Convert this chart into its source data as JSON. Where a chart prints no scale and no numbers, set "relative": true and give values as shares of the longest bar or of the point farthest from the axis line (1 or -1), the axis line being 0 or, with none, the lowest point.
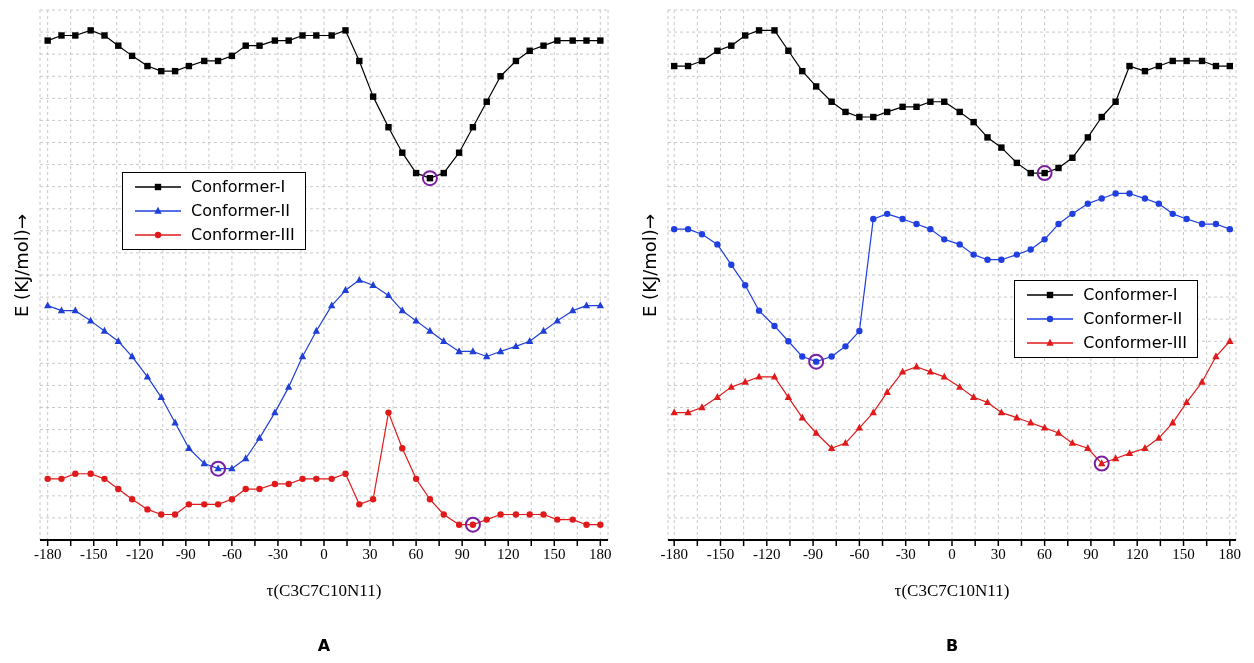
{
  "chart_data": [
    {
      "type": "line",
      "xlabel": "τ(C3C7C10N11)",
      "ylabel": "E (KJ/mol)→",
      "relative": true,
      "grid": true,
      "legend": "left",
      "annotations": [
        "A"
      ],
      "x": [
        -180,
        -171,
        -162,
        -152,
        -143,
        -134,
        -125,
        -115,
        -106,
        -97,
        -88,
        -78,
        -69,
        -60,
        -51,
        -42,
        -32,
        -23,
        -14,
        -5,
        5,
        14,
        23,
        32,
        42,
        51,
        60,
        69,
        78,
        88,
        97,
        106,
        115,
        125,
        134,
        143,
        152,
        162,
        171,
        180
      ],
      "xlim": [
        -185,
        185
      ],
      "xticks": [
        -180,
        {
          "value": -165,
          "label": null
        },
        -150,
        {
          "value": -135,
          "label": null
        },
        -120,
        {
          "value": -105,
          "label": null
        },
        -90,
        {
          "value": -75,
          "label": null
        },
        -60,
        {
          "value": -45,
          "label": null
        },
        -30,
        {
          "value": -15,
          "label": null
        },
        0,
        {
          "value": 15,
          "label": null
        },
        30,
        {
          "value": 45,
          "label": null
        },
        60,
        {
          "value": 75,
          "label": null
        },
        90,
        {
          "value": 105,
          "label": null
        },
        120,
        {
          "value": 135,
          "label": null
        },
        150,
        {
          "value": 165,
          "label": null
        },
        180
      ],
      "series": [
        {
          "name": "Conformer-I",
          "color": "#000000",
          "marker": "square",
          "values": [
            0.98,
            0.99,
            0.99,
            1.0,
            0.99,
            0.97,
            0.95,
            0.93,
            0.92,
            0.92,
            0.93,
            0.94,
            0.94,
            0.95,
            0.97,
            0.97,
            0.98,
            0.98,
            0.99,
            0.99,
            0.99,
            1.0,
            0.94,
            0.87,
            0.81,
            0.76,
            0.72,
            0.71,
            0.72,
            0.76,
            0.81,
            0.86,
            0.91,
            0.94,
            0.96,
            0.97,
            0.98,
            0.98,
            0.98,
            0.98
          ]
        },
        {
          "name": "Conformer-II",
          "color": "#1f3fd6",
          "marker": "triangle",
          "values": [
            0.46,
            0.45,
            0.45,
            0.43,
            0.41,
            0.39,
            0.36,
            0.32,
            0.28,
            0.23,
            0.18,
            0.15,
            0.14,
            0.14,
            0.16,
            0.2,
            0.25,
            0.3,
            0.36,
            0.41,
            0.46,
            0.49,
            0.51,
            0.5,
            0.48,
            0.45,
            0.43,
            0.41,
            0.39,
            0.37,
            0.37,
            0.36,
            0.37,
            0.38,
            0.39,
            0.41,
            0.43,
            0.45,
            0.46,
            0.46
          ]
        },
        {
          "name": "Conformer-III",
          "color": "#e01a1a",
          "marker": "circle",
          "values": [
            0.12,
            0.12,
            0.13,
            0.13,
            0.12,
            0.1,
            0.08,
            0.06,
            0.05,
            0.05,
            0.07,
            0.07,
            0.07,
            0.08,
            0.1,
            0.1,
            0.11,
            0.11,
            0.12,
            0.12,
            0.12,
            0.13,
            0.07,
            0.08,
            0.25,
            0.18,
            0.12,
            0.08,
            0.05,
            0.03,
            0.03,
            0.04,
            0.05,
            0.05,
            0.05,
            0.05,
            0.04,
            0.04,
            0.03,
            0.03
          ]
        },
        {
          "type": "scatter",
          "color": "#7a1fa2",
          "marker": "circle",
          "x": [
            69,
            -69,
            97
          ],
          "values": [
            0.71,
            0.14,
            0.03
          ]
        }
      ]
    },
    {
      "type": "line",
      "xlabel": "τ(C3C7C10N11)",
      "ylabel": "E (KJ/mol)→",
      "relative": true,
      "grid": true,
      "legend": "right",
      "annotations": [
        "B"
      ],
      "x": [
        -180,
        -171,
        -162,
        -152,
        -143,
        -134,
        -125,
        -115,
        -106,
        -97,
        -88,
        -78,
        -69,
        -60,
        -51,
        -42,
        -32,
        -23,
        -14,
        -5,
        5,
        14,
        23,
        32,
        42,
        51,
        60,
        69,
        78,
        88,
        97,
        106,
        115,
        125,
        134,
        143,
        152,
        162,
        171,
        180
      ],
      "xlim": [
        -184,
        184
      ],
      "xticks": [
        -180,
        {
          "value": -165,
          "label": null
        },
        -150,
        {
          "value": -135,
          "label": null
        },
        -120,
        {
          "value": -105,
          "label": null
        },
        -90,
        {
          "value": -75,
          "label": null
        },
        -60,
        {
          "value": -45,
          "label": null
        },
        -30,
        {
          "value": -15,
          "label": null
        },
        0,
        {
          "value": 15,
          "label": null
        },
        30,
        {
          "value": 45,
          "label": null
        },
        60,
        {
          "value": 75,
          "label": null
        },
        90,
        {
          "value": 105,
          "label": null
        },
        120,
        {
          "value": 135,
          "label": null
        },
        150,
        {
          "value": 165,
          "label": null
        },
        180
      ],
      "series": [
        {
          "name": "Conformer-I",
          "color": "#000000",
          "marker": "square",
          "values": [
            0.93,
            0.93,
            0.94,
            0.96,
            0.97,
            0.99,
            1.0,
            1.0,
            0.96,
            0.92,
            0.89,
            0.86,
            0.84,
            0.83,
            0.83,
            0.84,
            0.85,
            0.85,
            0.86,
            0.86,
            0.84,
            0.82,
            0.79,
            0.77,
            0.74,
            0.72,
            0.72,
            0.73,
            0.75,
            0.79,
            0.83,
            0.86,
            0.93,
            0.92,
            0.93,
            0.94,
            0.94,
            0.94,
            0.93,
            0.93
          ]
        },
        {
          "name": "Conformer-II",
          "color": "#1f3fe0",
          "marker": "circle",
          "values": [
            0.61,
            0.61,
            0.6,
            0.58,
            0.54,
            0.5,
            0.45,
            0.42,
            0.39,
            0.36,
            0.35,
            0.36,
            0.38,
            0.41,
            0.63,
            0.64,
            0.63,
            0.62,
            0.61,
            0.59,
            0.58,
            0.56,
            0.55,
            0.55,
            0.56,
            0.57,
            0.59,
            0.62,
            0.64,
            0.66,
            0.67,
            0.68,
            0.68,
            0.67,
            0.66,
            0.64,
            0.63,
            0.62,
            0.62,
            0.61
          ]
        },
        {
          "name": "Conformer-III",
          "color": "#e01a1a",
          "marker": "triangle",
          "values": [
            0.25,
            0.25,
            0.26,
            0.28,
            0.3,
            0.31,
            0.32,
            0.32,
            0.28,
            0.24,
            0.21,
            0.18,
            0.19,
            0.22,
            0.25,
            0.29,
            0.33,
            0.34,
            0.33,
            0.32,
            0.3,
            0.28,
            0.27,
            0.25,
            0.24,
            0.23,
            0.22,
            0.21,
            0.19,
            0.18,
            0.15,
            0.16,
            0.17,
            0.18,
            0.2,
            0.23,
            0.27,
            0.31,
            0.36,
            0.39
          ]
        },
        {
          "type": "scatter",
          "color": "#7a1fa2",
          "marker": "circle",
          "x": [
            60,
            -88,
            97
          ],
          "values": [
            0.72,
            0.35,
            0.15
          ]
        }
      ]
    }
  ]
}
